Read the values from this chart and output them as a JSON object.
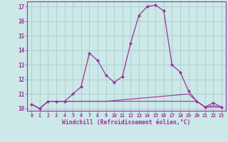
{
  "bg_color": "#cce8e8",
  "grid_color": "#aacccc",
  "line_color": "#993399",
  "x_hours": [
    0,
    1,
    2,
    3,
    4,
    5,
    6,
    7,
    8,
    9,
    10,
    11,
    12,
    13,
    14,
    15,
    16,
    17,
    18,
    19,
    20,
    21,
    22,
    23
  ],
  "curve_main": [
    10.3,
    10.0,
    10.5,
    10.5,
    10.5,
    11.0,
    11.5,
    13.8,
    13.3,
    12.3,
    11.8,
    12.2,
    14.5,
    16.4,
    17.0,
    17.1,
    16.7,
    13.0,
    12.5,
    11.2,
    10.5,
    10.1,
    10.4,
    10.1
  ],
  "curve_upper": [
    10.3,
    10.0,
    10.5,
    10.5,
    10.5,
    10.5,
    10.5,
    10.5,
    10.5,
    10.5,
    10.55,
    10.6,
    10.65,
    10.7,
    10.75,
    10.8,
    10.85,
    10.9,
    10.95,
    11.0,
    10.5,
    10.1,
    10.2,
    10.1
  ],
  "curve_lower": [
    10.3,
    10.0,
    10.5,
    10.5,
    10.5,
    10.5,
    10.5,
    10.5,
    10.5,
    10.5,
    10.5,
    10.5,
    10.5,
    10.5,
    10.5,
    10.5,
    10.5,
    10.5,
    10.5,
    10.5,
    10.5,
    10.1,
    10.1,
    10.1
  ],
  "ylim_min": 9.85,
  "ylim_max": 17.35,
  "xlim_min": -0.5,
  "xlim_max": 23.5,
  "xlabel": "Windchill (Refroidissement éolien,°C)",
  "yticks": [
    10,
    11,
    12,
    13,
    14,
    15,
    16,
    17
  ],
  "xticks": [
    0,
    1,
    2,
    3,
    4,
    5,
    6,
    7,
    8,
    9,
    10,
    11,
    12,
    13,
    14,
    15,
    16,
    17,
    18,
    19,
    20,
    21,
    22,
    23
  ]
}
